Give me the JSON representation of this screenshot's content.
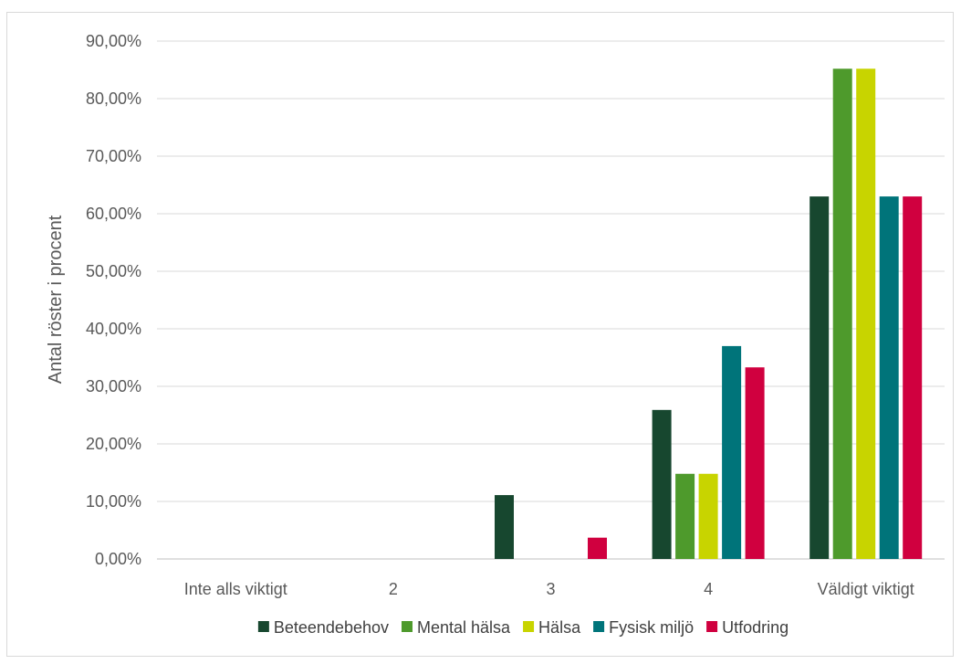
{
  "chart_data": {
    "type": "bar",
    "title": "",
    "xlabel": "",
    "ylabel": "Antal röster i procent",
    "ylim": [
      0,
      90
    ],
    "y_ticks": [
      "0,00%",
      "10,00%",
      "20,00%",
      "30,00%",
      "40,00%",
      "50,00%",
      "60,00%",
      "70,00%",
      "80,00%",
      "90,00%"
    ],
    "grid": true,
    "legend_position": "bottom",
    "categories": [
      "Inte alls viktigt",
      "2",
      "3",
      "4",
      "Väldigt viktigt"
    ],
    "series": [
      {
        "name": "Beteendebehov",
        "color": "#17472f",
        "values": [
          0,
          0,
          11.1,
          25.9,
          63.0
        ]
      },
      {
        "name": "Mental hälsa",
        "color": "#4e9a2c",
        "values": [
          0,
          0,
          0,
          14.8,
          85.2
        ]
      },
      {
        "name": "Hälsa",
        "color": "#c8d400",
        "values": [
          0,
          0,
          0,
          14.8,
          85.2
        ]
      },
      {
        "name": "Fysisk miljö",
        "color": "#00747a",
        "values": [
          0,
          0,
          0,
          37.0,
          63.0
        ]
      },
      {
        "name": "Utfodring",
        "color": "#d0003f",
        "values": [
          0,
          0,
          3.7,
          33.3,
          63.0
        ]
      }
    ]
  }
}
